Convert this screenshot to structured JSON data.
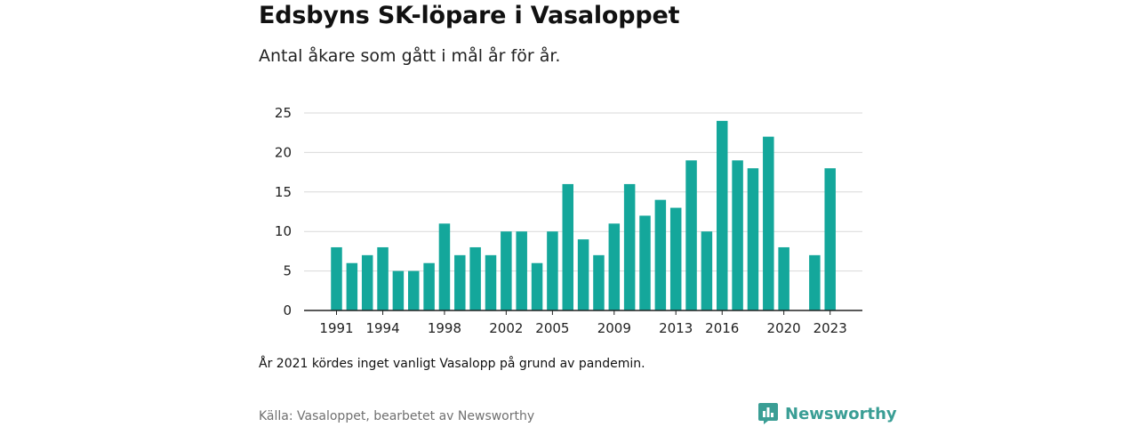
{
  "title": "Edsbyns SK-löpare i Vasaloppet",
  "subtitle": "Antal åkare som gått i mål år för år.",
  "note": "År 2021 kördes inget vanligt Vasalopp på grund av pandemin.",
  "source": "Källa: Vasaloppet, bearbetet av Newsworthy",
  "brand": {
    "name": "Newsworthy",
    "icon": "newsworthy-logo-icon",
    "color": "#3a9e95"
  },
  "colors": {
    "bar": "#14a79b",
    "grid": "#d9d9d9",
    "axis": "#222222"
  },
  "chart_data": {
    "type": "bar",
    "categories": [
      1991,
      1992,
      1993,
      1994,
      1995,
      1996,
      1997,
      1998,
      1999,
      2000,
      2001,
      2002,
      2003,
      2004,
      2005,
      2006,
      2007,
      2008,
      2009,
      2010,
      2011,
      2012,
      2013,
      2014,
      2015,
      2016,
      2017,
      2018,
      2019,
      2020,
      2021,
      2022,
      2023
    ],
    "values": [
      8,
      6,
      7,
      8,
      5,
      5,
      6,
      11,
      7,
      8,
      7,
      10,
      10,
      6,
      10,
      16,
      9,
      7,
      11,
      16,
      12,
      14,
      13,
      19,
      10,
      24,
      19,
      18,
      22,
      8,
      null,
      7,
      18
    ],
    "x_tick_labels": [
      "1991",
      "1994",
      "1998",
      "2002",
      "2005",
      "2009",
      "2013",
      "2016",
      "2020",
      "2023"
    ],
    "y_ticks": [
      0,
      5,
      10,
      15,
      20,
      25
    ],
    "ylim": [
      0,
      25
    ],
    "grid": true
  }
}
